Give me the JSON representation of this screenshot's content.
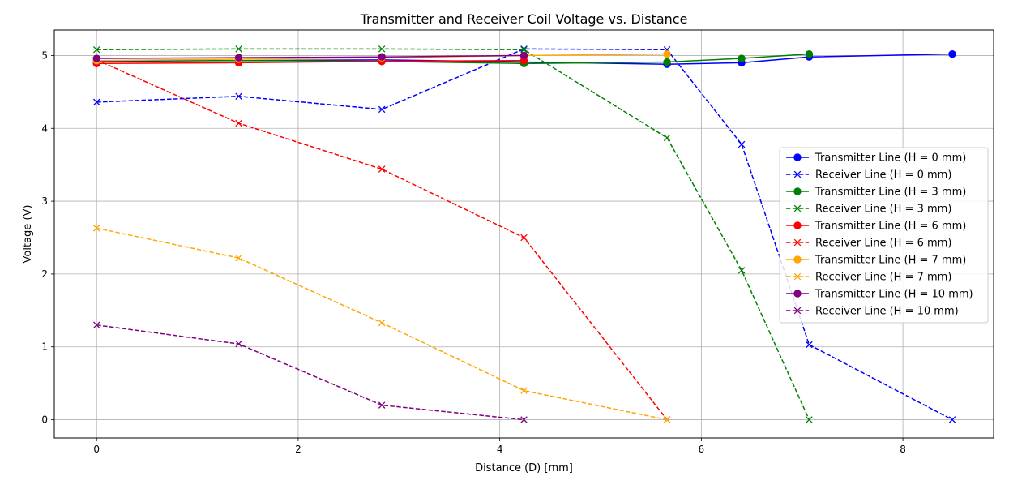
{
  "chart_data": {
    "type": "line",
    "title": "Transmitter and Receiver Coil Voltage vs. Distance",
    "xlabel": "Distance (D) [mm]",
    "ylabel": "Voltage (V)",
    "xlim": [
      -0.42,
      8.9
    ],
    "ylim": [
      -0.25,
      5.35
    ],
    "xticks": [
      0,
      2,
      4,
      6,
      8
    ],
    "yticks": [
      0,
      1,
      2,
      3,
      4,
      5
    ],
    "grid": true,
    "legend_position": "center-right",
    "series": [
      {
        "name": "Transmitter Line (H = 0 mm)",
        "color": "#0000ff",
        "style": "solid",
        "marker": "circle",
        "x": [
          0,
          1.41,
          2.83,
          4.24,
          5.66,
          6.4,
          7.07,
          8.49
        ],
        "y": [
          4.92,
          4.93,
          4.94,
          4.91,
          4.88,
          4.9,
          4.98,
          5.02
        ]
      },
      {
        "name": "Receiver Line (H = 0 mm)",
        "color": "#0000ff",
        "style": "dashed",
        "marker": "x",
        "x": [
          0,
          1.41,
          2.83,
          4.24,
          5.66,
          6.4,
          7.07,
          8.49
        ],
        "y": [
          4.36,
          4.44,
          4.26,
          5.09,
          5.08,
          3.78,
          1.03,
          0
        ]
      },
      {
        "name": "Transmitter Line (H = 3 mm)",
        "color": "#008000",
        "style": "solid",
        "marker": "circle",
        "x": [
          0,
          1.41,
          2.83,
          4.24,
          5.66,
          6.4,
          7.07
        ],
        "y": [
          4.93,
          4.93,
          4.92,
          4.89,
          4.91,
          4.96,
          5.02
        ]
      },
      {
        "name": "Receiver Line (H = 3 mm)",
        "color": "#008000",
        "style": "dashed",
        "marker": "x",
        "x": [
          0,
          1.41,
          2.83,
          4.24,
          5.66,
          6.4,
          7.07
        ],
        "y": [
          5.08,
          5.09,
          5.09,
          5.08,
          3.87,
          2.05,
          0
        ]
      },
      {
        "name": "Transmitter Line (H = 6 mm)",
        "color": "#ff0000",
        "style": "solid",
        "marker": "circle",
        "x": [
          0,
          1.41,
          2.83,
          4.24
        ],
        "y": [
          4.89,
          4.9,
          4.92,
          4.93
        ]
      },
      {
        "name": "Receiver Line (H = 6 mm)",
        "color": "#ff0000",
        "style": "dashed",
        "marker": "x",
        "x": [
          0,
          1.41,
          2.83,
          4.24,
          5.66
        ],
        "y": [
          4.94,
          4.07,
          3.44,
          2.5,
          0
        ]
      },
      {
        "name": "Transmitter Line (H = 7 mm)",
        "color": "#ffa500",
        "style": "solid",
        "marker": "circle",
        "x": [
          0,
          1.41,
          2.83,
          4.24,
          5.66
        ],
        "y": [
          4.93,
          4.95,
          4.97,
          5.0,
          5.02
        ]
      },
      {
        "name": "Receiver Line (H = 7 mm)",
        "color": "#ffa500",
        "style": "dashed",
        "marker": "x",
        "x": [
          0,
          1.41,
          2.83,
          4.24,
          5.66
        ],
        "y": [
          2.63,
          2.22,
          1.33,
          0.4,
          0
        ]
      },
      {
        "name": "Transmitter Line (H = 10 mm)",
        "color": "#800080",
        "style": "solid",
        "marker": "circle",
        "x": [
          0,
          1.41,
          2.83,
          4.24
        ],
        "y": [
          4.96,
          4.97,
          4.98,
          5.0
        ]
      },
      {
        "name": "Receiver Line (H = 10 mm)",
        "color": "#800080",
        "style": "dashed",
        "marker": "x",
        "x": [
          0,
          1.41,
          2.83,
          4.24
        ],
        "y": [
          1.3,
          1.04,
          0.2,
          0
        ]
      }
    ]
  }
}
